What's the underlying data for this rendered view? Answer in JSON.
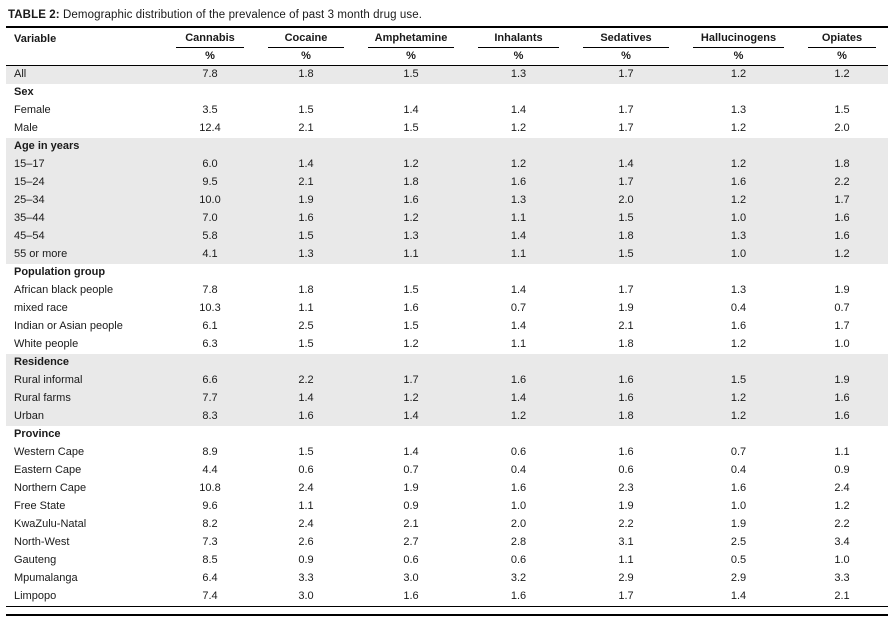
{
  "title": {
    "label": "TABLE 2:",
    "text": "Demographic distribution of the prevalence of past 3 month drug use."
  },
  "table": {
    "variable_header": "Variable",
    "unit": "%",
    "columns": [
      "Cannabis",
      "Cocaine",
      "Amphetamine",
      "Inhalants",
      "Sedatives",
      "Hallucinogens",
      "Opiates"
    ],
    "shade_color": "#e9e9e9",
    "rows": [
      {
        "type": "data",
        "label": "All",
        "shade": true,
        "values": [
          "7.8",
          "1.8",
          "1.5",
          "1.3",
          "1.7",
          "1.2",
          "1.2"
        ]
      },
      {
        "type": "group",
        "label": "Sex",
        "shade": false,
        "values": [
          "",
          "",
          "",
          "",
          "",
          "",
          ""
        ]
      },
      {
        "type": "data",
        "label": "Female",
        "shade": false,
        "values": [
          "3.5",
          "1.5",
          "1.4",
          "1.4",
          "1.7",
          "1.3",
          "1.5"
        ]
      },
      {
        "type": "data",
        "label": "Male",
        "shade": false,
        "values": [
          "12.4",
          "2.1",
          "1.5",
          "1.2",
          "1.7",
          "1.2",
          "2.0"
        ]
      },
      {
        "type": "group",
        "label": "Age in years",
        "shade": true,
        "values": [
          "",
          "",
          "",
          "",
          "",
          "",
          ""
        ]
      },
      {
        "type": "data",
        "label": "15–17",
        "shade": true,
        "values": [
          "6.0",
          "1.4",
          "1.2",
          "1.2",
          "1.4",
          "1.2",
          "1.8"
        ]
      },
      {
        "type": "data",
        "label": "15–24",
        "shade": true,
        "values": [
          "9.5",
          "2.1",
          "1.8",
          "1.6",
          "1.7",
          "1.6",
          "2.2"
        ]
      },
      {
        "type": "data",
        "label": "25–34",
        "shade": true,
        "values": [
          "10.0",
          "1.9",
          "1.6",
          "1.3",
          "2.0",
          "1.2",
          "1.7"
        ]
      },
      {
        "type": "data",
        "label": "35–44",
        "shade": true,
        "values": [
          "7.0",
          "1.6",
          "1.2",
          "1.1",
          "1.5",
          "1.0",
          "1.6"
        ]
      },
      {
        "type": "data",
        "label": "45–54",
        "shade": true,
        "values": [
          "5.8",
          "1.5",
          "1.3",
          "1.4",
          "1.8",
          "1.3",
          "1.6"
        ]
      },
      {
        "type": "data",
        "label": "55 or more",
        "shade": true,
        "values": [
          "4.1",
          "1.3",
          "1.1",
          "1.1",
          "1.5",
          "1.0",
          "1.2"
        ]
      },
      {
        "type": "group",
        "label": "Population group",
        "shade": false,
        "values": [
          "",
          "",
          "",
          "",
          "",
          "",
          ""
        ]
      },
      {
        "type": "data",
        "label": "African black people",
        "shade": false,
        "values": [
          "7.8",
          "1.8",
          "1.5",
          "1.4",
          "1.7",
          "1.3",
          "1.9"
        ]
      },
      {
        "type": "data",
        "label": "mixed race",
        "shade": false,
        "values": [
          "10.3",
          "1.1",
          "1.6",
          "0.7",
          "1.9",
          "0.4",
          "0.7"
        ]
      },
      {
        "type": "data",
        "label": "Indian or Asian people",
        "shade": false,
        "values": [
          "6.1",
          "2.5",
          "1.5",
          "1.4",
          "2.1",
          "1.6",
          "1.7"
        ]
      },
      {
        "type": "data",
        "label": "White people",
        "shade": false,
        "values": [
          "6.3",
          "1.5",
          "1.2",
          "1.1",
          "1.8",
          "1.2",
          "1.0"
        ]
      },
      {
        "type": "group",
        "label": "Residence",
        "shade": true,
        "values": [
          "",
          "",
          "",
          "",
          "",
          "",
          ""
        ]
      },
      {
        "type": "data",
        "label": "Rural informal",
        "shade": true,
        "values": [
          "6.6",
          "2.2",
          "1.7",
          "1.6",
          "1.6",
          "1.5",
          "1.9"
        ]
      },
      {
        "type": "data",
        "label": "Rural farms",
        "shade": true,
        "values": [
          "7.7",
          "1.4",
          "1.2",
          "1.4",
          "1.6",
          "1.2",
          "1.6"
        ]
      },
      {
        "type": "data",
        "label": "Urban",
        "shade": true,
        "values": [
          "8.3",
          "1.6",
          "1.4",
          "1.2",
          "1.8",
          "1.2",
          "1.6"
        ]
      },
      {
        "type": "group",
        "label": "Province",
        "shade": false,
        "values": [
          "",
          "",
          "",
          "",
          "",
          "",
          ""
        ]
      },
      {
        "type": "data",
        "label": "Western Cape",
        "shade": false,
        "values": [
          "8.9",
          "1.5",
          "1.4",
          "0.6",
          "1.6",
          "0.7",
          "1.1"
        ]
      },
      {
        "type": "data",
        "label": "Eastern Cape",
        "shade": false,
        "values": [
          "4.4",
          "0.6",
          "0.7",
          "0.4",
          "0.6",
          "0.4",
          "0.9"
        ]
      },
      {
        "type": "data",
        "label": "Northern Cape",
        "shade": false,
        "values": [
          "10.8",
          "2.4",
          "1.9",
          "1.6",
          "2.3",
          "1.6",
          "2.4"
        ]
      },
      {
        "type": "data",
        "label": "Free State",
        "shade": false,
        "values": [
          "9.6",
          "1.1",
          "0.9",
          "1.0",
          "1.9",
          "1.0",
          "1.2"
        ]
      },
      {
        "type": "data",
        "label": "KwaZulu-Natal",
        "shade": false,
        "values": [
          "8.2",
          "2.4",
          "2.1",
          "2.0",
          "2.2",
          "1.9",
          "2.2"
        ]
      },
      {
        "type": "data",
        "label": "North-West",
        "shade": false,
        "values": [
          "7.3",
          "2.6",
          "2.7",
          "2.8",
          "3.1",
          "2.5",
          "3.4"
        ]
      },
      {
        "type": "data",
        "label": "Gauteng",
        "shade": false,
        "values": [
          "8.5",
          "0.9",
          "0.6",
          "0.6",
          "1.1",
          "0.5",
          "1.0"
        ]
      },
      {
        "type": "data",
        "label": "Mpumalanga",
        "shade": false,
        "values": [
          "6.4",
          "3.3",
          "3.0",
          "3.2",
          "2.9",
          "2.9",
          "3.3"
        ]
      },
      {
        "type": "data",
        "label": "Limpopo",
        "shade": false,
        "values": [
          "7.4",
          "3.0",
          "1.6",
          "1.6",
          "1.7",
          "1.4",
          "2.1"
        ]
      }
    ]
  }
}
